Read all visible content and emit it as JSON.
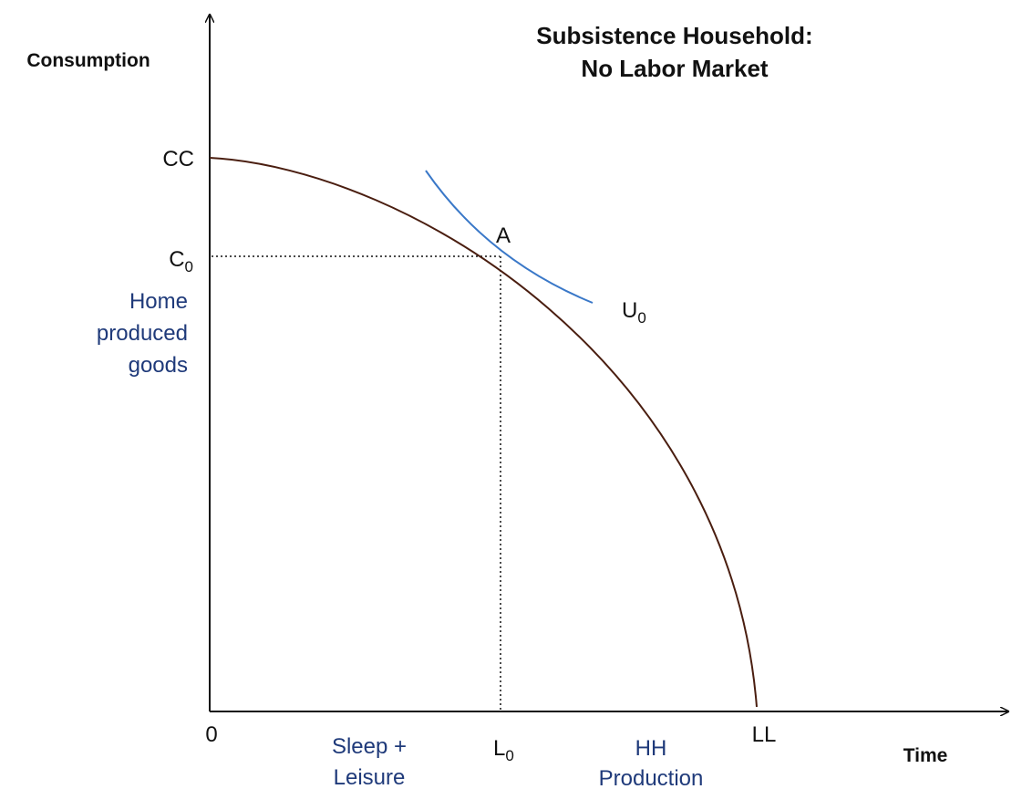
{
  "title": [
    "Subsistence Household:",
    "No Labor Market"
  ],
  "y_axis_label": "Consumption",
  "x_axis_label": "Time",
  "y_labels": {
    "cc": "CC",
    "c0": {
      "text": "C",
      "sub": "0"
    },
    "region": [
      "Home",
      "produced",
      "goods"
    ]
  },
  "x_labels": {
    "origin": "0",
    "l0": {
      "text": "L",
      "sub": "0"
    },
    "ll": "LL",
    "left_region": [
      "Sleep +",
      "Leisure"
    ],
    "right_region": [
      "HH",
      "Production"
    ]
  },
  "point_label": "A",
  "curve_label": {
    "text": "U",
    "sub": "0"
  }
}
